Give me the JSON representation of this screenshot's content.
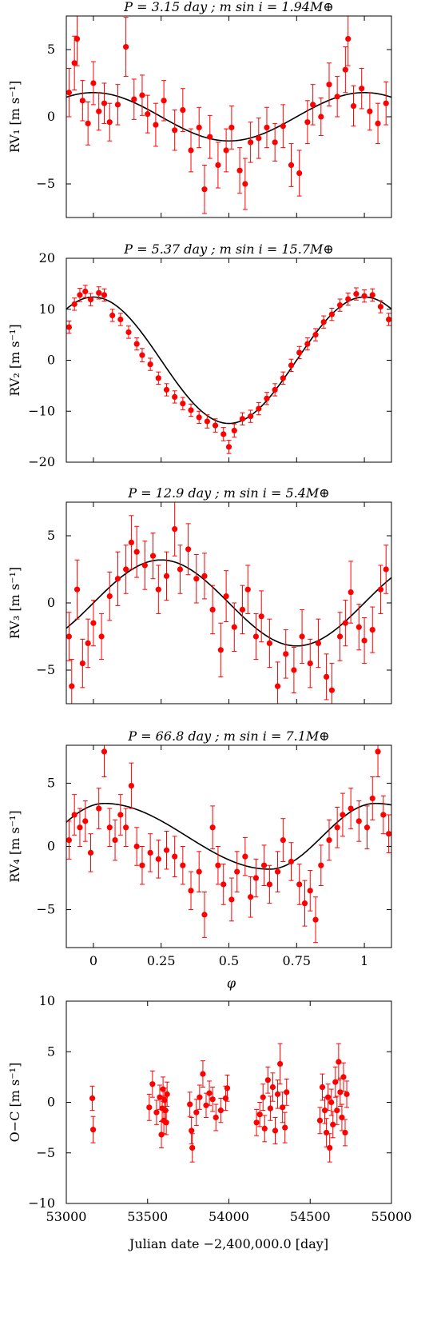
{
  "colors": {
    "points": "#ff0000",
    "model": "#000000",
    "axes": "#000000"
  },
  "chart_data": [
    {
      "type": "scatter",
      "title": "P = 3.15 day ; m sin i = 1.94M⊕",
      "ylabel": "RV₁ [m s⁻¹]",
      "xlabel": "",
      "xlim": [
        -0.1,
        1.1
      ],
      "ylim": [
        -7.5,
        7.5
      ],
      "xticks": [
        0,
        0.25,
        0.5,
        0.75,
        1
      ],
      "yticks": [
        -5,
        0,
        5
      ],
      "ytick_labels": [
        "−5",
        "0",
        "5"
      ],
      "model": {
        "kind": "sine",
        "amplitude": 1.8,
        "phase_of_max": 0.0
      },
      "points": [
        [
          -0.09,
          1.8,
          1.8
        ],
        [
          -0.07,
          4.0,
          2.0
        ],
        [
          -0.06,
          5.8,
          2.0
        ],
        [
          -0.04,
          1.2,
          1.5
        ],
        [
          -0.02,
          -0.5,
          1.6
        ],
        [
          0.0,
          2.5,
          1.6
        ],
        [
          0.02,
          0.4,
          1.4
        ],
        [
          0.04,
          1.0,
          1.5
        ],
        [
          0.06,
          -0.4,
          1.4
        ],
        [
          0.09,
          0.9,
          1.5
        ],
        [
          0.12,
          5.2,
          2.2
        ],
        [
          0.15,
          1.3,
          1.5
        ],
        [
          0.18,
          1.6,
          1.5
        ],
        [
          0.2,
          0.2,
          1.4
        ],
        [
          0.23,
          -0.6,
          1.6
        ],
        [
          0.26,
          1.2,
          1.5
        ],
        [
          0.3,
          -1.0,
          1.5
        ],
        [
          0.33,
          0.5,
          1.6
        ],
        [
          0.36,
          -2.5,
          1.6
        ],
        [
          0.39,
          -0.8,
          1.5
        ],
        [
          0.41,
          -5.4,
          1.8
        ],
        [
          0.43,
          -1.5,
          1.6
        ],
        [
          0.46,
          -3.6,
          1.7
        ],
        [
          0.49,
          -2.5,
          1.6
        ],
        [
          0.51,
          -0.8,
          1.6
        ],
        [
          0.54,
          -4.0,
          1.7
        ],
        [
          0.56,
          -5.0,
          1.9
        ],
        [
          0.58,
          -1.9,
          1.5
        ],
        [
          0.61,
          -1.6,
          1.5
        ],
        [
          0.64,
          -0.8,
          1.5
        ],
        [
          0.67,
          -1.9,
          1.4
        ],
        [
          0.7,
          -0.7,
          1.6
        ],
        [
          0.73,
          -3.6,
          1.6
        ],
        [
          0.76,
          -4.2,
          1.7
        ],
        [
          0.79,
          -0.4,
          1.6
        ],
        [
          0.81,
          0.9,
          1.5
        ],
        [
          0.84,
          0.0,
          1.4
        ],
        [
          0.87,
          2.4,
          1.6
        ],
        [
          0.9,
          1.5,
          1.5
        ],
        [
          0.93,
          3.5,
          1.7
        ],
        [
          0.94,
          5.8,
          2.0
        ],
        [
          0.96,
          0.8,
          1.5
        ],
        [
          0.99,
          2.1,
          1.5
        ],
        [
          1.02,
          0.4,
          1.4
        ],
        [
          1.05,
          -0.5,
          1.5
        ],
        [
          1.08,
          1.0,
          1.6
        ]
      ]
    },
    {
      "type": "scatter",
      "title": "P = 5.37 day ; m sin i = 15.7M⊕",
      "ylabel": "RV₂ [m s⁻¹]",
      "xlabel": "",
      "xlim": [
        -0.1,
        1.1
      ],
      "ylim": [
        -20,
        20
      ],
      "xticks": [
        0,
        0.25,
        0.5,
        0.75,
        1
      ],
      "yticks": [
        -20,
        -10,
        0,
        10,
        20
      ],
      "ytick_labels": [
        "−20",
        "−10",
        "0",
        "10",
        "20"
      ],
      "model": {
        "kind": "sine",
        "amplitude": 12.4,
        "phase_of_max": 0.0
      },
      "points": [
        [
          -0.09,
          6.5,
          1.2
        ],
        [
          -0.07,
          11.0,
          1.2
        ],
        [
          -0.05,
          12.8,
          1.3
        ],
        [
          -0.03,
          13.5,
          1.2
        ],
        [
          -0.01,
          11.9,
          1.2
        ],
        [
          0.02,
          13.2,
          1.2
        ],
        [
          0.04,
          12.8,
          1.2
        ],
        [
          0.07,
          8.8,
          1.2
        ],
        [
          0.1,
          8.0,
          1.2
        ],
        [
          0.13,
          5.5,
          1.2
        ],
        [
          0.16,
          3.2,
          1.2
        ],
        [
          0.18,
          1.0,
          1.3
        ],
        [
          0.21,
          -0.8,
          1.2
        ],
        [
          0.24,
          -3.5,
          1.2
        ],
        [
          0.27,
          -5.8,
          1.2
        ],
        [
          0.3,
          -7.2,
          1.2
        ],
        [
          0.33,
          -8.5,
          1.2
        ],
        [
          0.36,
          -9.8,
          1.2
        ],
        [
          0.39,
          -11.2,
          1.2
        ],
        [
          0.42,
          -12.0,
          1.3
        ],
        [
          0.45,
          -12.8,
          1.3
        ],
        [
          0.48,
          -14.5,
          1.3
        ],
        [
          0.5,
          -17.0,
          1.3
        ],
        [
          0.52,
          -13.8,
          1.3
        ],
        [
          0.55,
          -11.5,
          1.2
        ],
        [
          0.58,
          -11.0,
          1.2
        ],
        [
          0.61,
          -9.5,
          1.2
        ],
        [
          0.64,
          -7.5,
          1.2
        ],
        [
          0.67,
          -5.8,
          1.2
        ],
        [
          0.7,
          -3.5,
          1.2
        ],
        [
          0.73,
          -1.0,
          1.2
        ],
        [
          0.76,
          1.5,
          1.2
        ],
        [
          0.79,
          3.2,
          1.2
        ],
        [
          0.82,
          5.0,
          1.2
        ],
        [
          0.85,
          7.5,
          1.2
        ],
        [
          0.88,
          9.0,
          1.2
        ],
        [
          0.91,
          10.8,
          1.2
        ],
        [
          0.94,
          12.0,
          1.2
        ],
        [
          0.97,
          13.0,
          1.2
        ],
        [
          1.0,
          12.6,
          1.2
        ],
        [
          1.03,
          12.8,
          1.2
        ],
        [
          1.06,
          10.5,
          1.2
        ],
        [
          1.09,
          8.0,
          1.2
        ]
      ]
    },
    {
      "type": "scatter",
      "title": "P = 12.9 day ; m sin i = 5.4M⊕",
      "ylabel": "RV₃ [m s⁻¹]",
      "xlabel": "",
      "xlim": [
        -0.1,
        1.1
      ],
      "ylim": [
        -7.5,
        7.5
      ],
      "xticks": [
        0,
        0.25,
        0.5,
        0.75,
        1
      ],
      "yticks": [
        -5,
        0,
        5
      ],
      "ytick_labels": [
        "−5",
        "0",
        "5"
      ],
      "model": {
        "kind": "sine",
        "amplitude": 3.2,
        "phase_of_max": 0.25
      },
      "points": [
        [
          -0.09,
          -2.5,
          1.8
        ],
        [
          -0.08,
          -6.2,
          2.0
        ],
        [
          -0.06,
          1.0,
          2.2
        ],
        [
          -0.04,
          -4.5,
          1.8
        ],
        [
          -0.02,
          -3.0,
          1.8
        ],
        [
          0.0,
          -1.5,
          1.7
        ],
        [
          0.03,
          -2.5,
          1.7
        ],
        [
          0.06,
          0.5,
          1.8
        ],
        [
          0.09,
          1.8,
          2.0
        ],
        [
          0.12,
          2.5,
          1.8
        ],
        [
          0.14,
          4.5,
          2.0
        ],
        [
          0.16,
          3.8,
          1.9
        ],
        [
          0.19,
          2.8,
          1.8
        ],
        [
          0.22,
          3.5,
          1.7
        ],
        [
          0.24,
          1.0,
          1.8
        ],
        [
          0.27,
          2.0,
          1.8
        ],
        [
          0.3,
          5.5,
          2.0
        ],
        [
          0.32,
          2.5,
          1.8
        ],
        [
          0.35,
          4.0,
          1.9
        ],
        [
          0.38,
          1.8,
          1.8
        ],
        [
          0.41,
          2.0,
          1.7
        ],
        [
          0.44,
          -0.5,
          1.8
        ],
        [
          0.47,
          -3.5,
          2.0
        ],
        [
          0.49,
          0.5,
          1.9
        ],
        [
          0.52,
          -1.8,
          1.8
        ],
        [
          0.55,
          -0.5,
          1.8
        ],
        [
          0.57,
          1.0,
          1.8
        ],
        [
          0.6,
          -2.5,
          1.7
        ],
        [
          0.62,
          -1.0,
          1.9
        ],
        [
          0.65,
          -3.0,
          1.8
        ],
        [
          0.68,
          -6.2,
          1.8
        ],
        [
          0.71,
          -3.8,
          1.8
        ],
        [
          0.74,
          -5.0,
          1.7
        ],
        [
          0.77,
          -2.5,
          2.0
        ],
        [
          0.8,
          -4.5,
          1.8
        ],
        [
          0.83,
          -3.0,
          1.8
        ],
        [
          0.86,
          -5.5,
          1.7
        ],
        [
          0.88,
          -6.5,
          2.0
        ],
        [
          0.91,
          -2.5,
          1.8
        ],
        [
          0.93,
          -1.5,
          1.7
        ],
        [
          0.95,
          0.8,
          2.3
        ],
        [
          0.98,
          -1.8,
          1.7
        ],
        [
          1.0,
          -2.8,
          1.7
        ],
        [
          1.03,
          -2.0,
          1.7
        ],
        [
          1.06,
          1.0,
          1.8
        ],
        [
          1.08,
          2.5,
          1.8
        ]
      ]
    },
    {
      "type": "scatter",
      "title": "P = 66.8 day ; m sin i = 7.1M⊕",
      "ylabel": "RV₄ [m s⁻¹]",
      "xlabel": "φ",
      "xlim": [
        -0.1,
        1.1
      ],
      "ylim": [
        -8,
        8
      ],
      "xticks": [
        0,
        0.25,
        0.5,
        0.75,
        1
      ],
      "xtick_labels": [
        "0",
        "0.25",
        "0.5",
        "0.75",
        "1"
      ],
      "yticks": [
        -5,
        0,
        5
      ],
      "ytick_labels": [
        "−5",
        "0",
        "5"
      ],
      "model": {
        "kind": "keplerian",
        "max": 3.4,
        "min": -1.8
      },
      "points": [
        [
          -0.09,
          0.5,
          1.5
        ],
        [
          -0.07,
          2.5,
          1.6
        ],
        [
          -0.05,
          1.5,
          1.5
        ],
        [
          -0.03,
          2.0,
          1.6
        ],
        [
          -0.01,
          -0.5,
          1.5
        ],
        [
          0.02,
          3.0,
          1.6
        ],
        [
          0.04,
          7.5,
          2.0
        ],
        [
          0.06,
          1.5,
          1.5
        ],
        [
          0.08,
          0.5,
          1.6
        ],
        [
          0.1,
          2.5,
          1.6
        ],
        [
          0.12,
          1.5,
          1.5
        ],
        [
          0.14,
          4.8,
          1.8
        ],
        [
          0.16,
          0.0,
          1.5
        ],
        [
          0.18,
          -1.5,
          1.5
        ],
        [
          0.21,
          -0.5,
          1.5
        ],
        [
          0.24,
          -1.0,
          1.5
        ],
        [
          0.27,
          -0.3,
          1.5
        ],
        [
          0.3,
          -0.8,
          1.6
        ],
        [
          0.33,
          -1.5,
          1.5
        ],
        [
          0.36,
          -3.5,
          1.5
        ],
        [
          0.39,
          -2.0,
          1.6
        ],
        [
          0.41,
          -5.4,
          1.8
        ],
        [
          0.44,
          1.5,
          1.7
        ],
        [
          0.46,
          -1.5,
          1.5
        ],
        [
          0.48,
          -3.0,
          1.6
        ],
        [
          0.51,
          -4.2,
          1.7
        ],
        [
          0.53,
          -2.0,
          1.6
        ],
        [
          0.56,
          -0.8,
          1.5
        ],
        [
          0.58,
          -4.0,
          1.6
        ],
        [
          0.6,
          -2.5,
          1.5
        ],
        [
          0.63,
          -1.5,
          1.6
        ],
        [
          0.65,
          -3.0,
          1.5
        ],
        [
          0.68,
          -2.0,
          1.6
        ],
        [
          0.7,
          0.5,
          1.7
        ],
        [
          0.73,
          -1.2,
          1.5
        ],
        [
          0.76,
          -3.0,
          1.6
        ],
        [
          0.78,
          -4.5,
          1.8
        ],
        [
          0.8,
          -3.5,
          1.6
        ],
        [
          0.82,
          -5.8,
          1.8
        ],
        [
          0.84,
          -1.5,
          1.6
        ],
        [
          0.87,
          0.5,
          1.6
        ],
        [
          0.9,
          1.5,
          1.6
        ],
        [
          0.92,
          2.5,
          1.7
        ],
        [
          0.95,
          3.0,
          1.6
        ],
        [
          0.98,
          2.0,
          1.6
        ],
        [
          1.01,
          1.5,
          1.7
        ],
        [
          1.03,
          3.8,
          1.7
        ],
        [
          1.05,
          7.5,
          2.0
        ],
        [
          1.07,
          2.5,
          1.5
        ],
        [
          1.09,
          1.0,
          1.5
        ]
      ]
    },
    {
      "type": "scatter",
      "title": "",
      "ylabel": "O−C [m s⁻¹]",
      "xlabel": "Julian date −2,400,000.0 [day]",
      "xlim": [
        53000,
        55000
      ],
      "ylim": [
        -10,
        10
      ],
      "xticks": [
        53000,
        53500,
        54000,
        54500,
        55000
      ],
      "xtick_labels": [
        "53000",
        "53500",
        "54000",
        "54500",
        "55000"
      ],
      "yticks": [
        -10,
        -5,
        0,
        5,
        10
      ],
      "ytick_labels": [
        "−10",
        "−5",
        "0",
        "5",
        "10"
      ],
      "points": [
        [
          53160,
          0.4,
          1.2
        ],
        [
          53165,
          -2.7,
          1.3
        ],
        [
          53510,
          -0.5,
          1.3
        ],
        [
          53530,
          1.8,
          1.3
        ],
        [
          53555,
          -1.0,
          1.2
        ],
        [
          53575,
          0.5,
          1.2
        ],
        [
          53585,
          -3.2,
          1.3
        ],
        [
          53590,
          -0.6,
          1.2
        ],
        [
          53595,
          1.3,
          1.2
        ],
        [
          53600,
          -1.8,
          1.3
        ],
        [
          53605,
          0.2,
          1.2
        ],
        [
          53610,
          -0.8,
          1.3
        ],
        [
          53615,
          -2.0,
          1.2
        ],
        [
          53620,
          0.8,
          1.2
        ],
        [
          53760,
          -0.2,
          1.2
        ],
        [
          53770,
          -2.8,
          1.3
        ],
        [
          53775,
          -4.5,
          1.4
        ],
        [
          53800,
          -1.0,
          1.3
        ],
        [
          53820,
          0.5,
          1.2
        ],
        [
          53840,
          2.8,
          1.3
        ],
        [
          53860,
          -0.3,
          1.2
        ],
        [
          53880,
          0.9,
          1.2
        ],
        [
          53900,
          0.3,
          1.2
        ],
        [
          53920,
          -1.5,
          1.3
        ],
        [
          53950,
          -0.8,
          1.2
        ],
        [
          53980,
          0.4,
          1.2
        ],
        [
          53990,
          1.4,
          1.3
        ],
        [
          54170,
          -2.0,
          1.3
        ],
        [
          54190,
          -1.2,
          1.2
        ],
        [
          54210,
          0.5,
          1.3
        ],
        [
          54220,
          -2.6,
          1.3
        ],
        [
          54240,
          2.2,
          1.3
        ],
        [
          54255,
          -0.6,
          1.2
        ],
        [
          54270,
          1.5,
          1.4
        ],
        [
          54285,
          -2.8,
          1.3
        ],
        [
          54300,
          0.8,
          1.4
        ],
        [
          54315,
          3.8,
          2.0
        ],
        [
          54330,
          -0.5,
          1.5
        ],
        [
          54345,
          -2.5,
          1.5
        ],
        [
          54355,
          1.0,
          1.3
        ],
        [
          54560,
          -1.8,
          1.3
        ],
        [
          54575,
          1.5,
          1.3
        ],
        [
          54590,
          -0.8,
          1.3
        ],
        [
          54600,
          -3.0,
          1.4
        ],
        [
          54610,
          0.5,
          1.3
        ],
        [
          54620,
          -4.5,
          1.4
        ],
        [
          54630,
          0.0,
          1.3
        ],
        [
          54640,
          -2.2,
          1.3
        ],
        [
          54655,
          2.0,
          1.5
        ],
        [
          54665,
          -0.8,
          1.4
        ],
        [
          54675,
          4.0,
          1.8
        ],
        [
          54685,
          1.0,
          1.4
        ],
        [
          54695,
          -1.5,
          1.3
        ],
        [
          54705,
          2.5,
          1.4
        ],
        [
          54715,
          -3.0,
          1.3
        ],
        [
          54725,
          0.8,
          1.3
        ]
      ]
    }
  ]
}
